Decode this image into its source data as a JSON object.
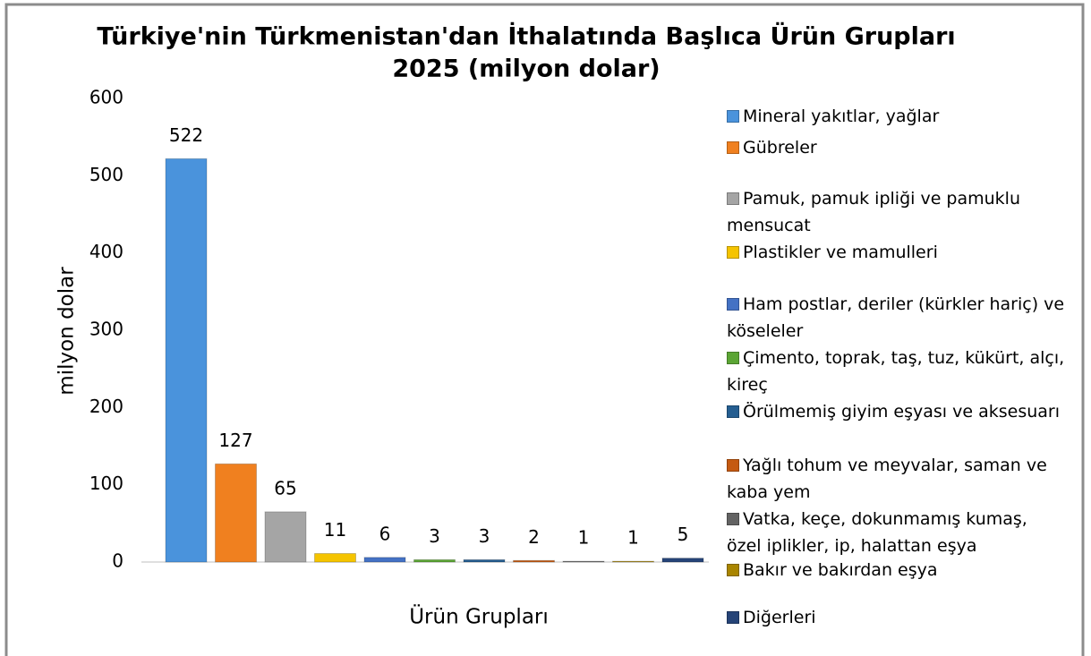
{
  "chart_data": {
    "type": "bar",
    "title": [
      "Türkiye'nin Türkmenistan'dan İthalatında Başlıca Ürün Grupları",
      "2025 (milyon dolar)"
    ],
    "x_label": "Ürün Grupları",
    "y_label": "milyon dolar",
    "categories": [
      null
    ],
    "series": [
      {
        "name": "Mineral yakıtlar, yağlar",
        "color": "#4a93dc",
        "values": [
          522
        ]
      },
      {
        "name": "Gübreler",
        "color": "#f0801f",
        "values": [
          127
        ]
      },
      {
        "name": "Pamuk, pamuk ipliği ve pamuklu mensucat",
        "color": "#a5a5a5",
        "values": [
          65
        ]
      },
      {
        "name": "Plastikler ve mamulleri",
        "color": "#f5c400",
        "values": [
          11
        ]
      },
      {
        "name": "Ham postlar, deriler (kürkler hariç) ve köseleler",
        "color": "#4472c4",
        "values": [
          6
        ]
      },
      {
        "name": "Çimento, toprak, taş, tuz, kükürt, alçı, kireç",
        "color": "#5ba534",
        "values": [
          3
        ]
      },
      {
        "name": "Örülmemiş giyim eşyası ve aksesuarı",
        "color": "#255e91",
        "values": [
          3
        ]
      },
      {
        "name": "Yağlı tohum ve meyvalar, saman ve kaba yem",
        "color": "#c55a11",
        "values": [
          2
        ]
      },
      {
        "name": "Vatka, keçe, dokunmamış kumaş, özel iplikler, ip, halattan eşya",
        "color": "#636363",
        "values": [
          1
        ]
      },
      {
        "name": "Bakır ve bakırdan eşya",
        "color": "#a98500",
        "values": [
          1
        ]
      },
      {
        "name": "Diğerleri",
        "color": "#264478",
        "values": [
          5
        ]
      }
    ],
    "ylim": [
      0,
      600
    ],
    "yticks": [
      0,
      100,
      200,
      300,
      400,
      500,
      600
    ]
  }
}
